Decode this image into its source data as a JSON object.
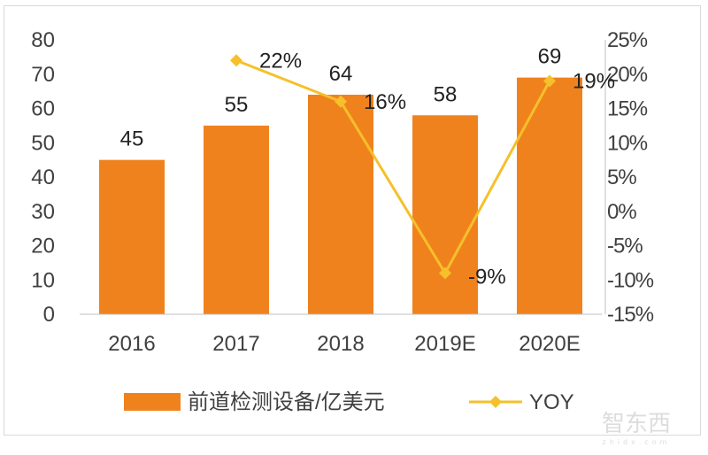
{
  "chart_data": {
    "type": "bar+line",
    "categories": [
      "2016",
      "2017",
      "2018",
      "2019E",
      "2020E"
    ],
    "series": [
      {
        "name": "前道检测设备/亿美元",
        "type": "bar",
        "axis": "left",
        "values": [
          45,
          55,
          64,
          58,
          69
        ],
        "labels": [
          "45",
          "55",
          "64",
          "58",
          "69"
        ],
        "color": "#F0821E"
      },
      {
        "name": "YOY",
        "type": "line",
        "axis": "right",
        "values": [
          null,
          22,
          16,
          -9,
          19
        ],
        "labels": [
          "",
          "22%",
          "16%",
          "-9%",
          "19%"
        ],
        "color": "#F5C02A"
      }
    ],
    "left_axis": {
      "ylim": [
        0,
        80
      ],
      "ticks": [
        "0",
        "10",
        "20",
        "30",
        "40",
        "50",
        "60",
        "70",
        "80"
      ]
    },
    "right_axis": {
      "ylim": [
        -15,
        25
      ],
      "ticks": [
        "-15%",
        "-10%",
        "-5%",
        "0%",
        "5%",
        "10%",
        "15%",
        "20%",
        "25%"
      ]
    },
    "legend": "bottom",
    "grid": false
  },
  "watermark": {
    "text": "智东西",
    "sub": "zhidx.com"
  }
}
